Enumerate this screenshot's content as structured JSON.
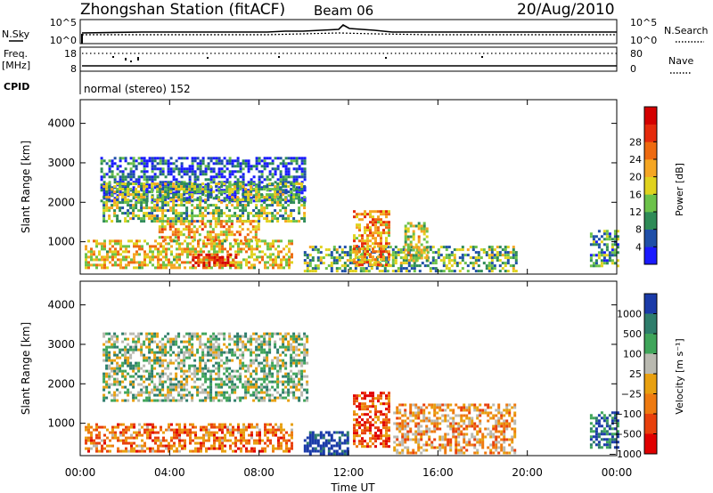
{
  "header": {
    "station": "Zhongshan Station (fitACF)",
    "beam": "Beam 06",
    "date": "20/Aug/2010"
  },
  "panels": {
    "nsky_label": "N.Sky",
    "nsearch_label": "N.Search",
    "freq_label": "Freq.",
    "freq_unit": "[MHz]",
    "nave_label": "Nave",
    "cpid_label": "CPID",
    "cpid_value": "normal (stereo) 152",
    "noise_ticks": [
      "10^5",
      "10^0"
    ],
    "freq_ticks": [
      "18",
      "8"
    ],
    "nave_ticks": [
      "80",
      "0"
    ]
  },
  "axes": {
    "xlabel": "Time UT",
    "ylabel": "Slant Range [km]",
    "xticks": [
      "00:00",
      "04:00",
      "08:00",
      "12:00",
      "16:00",
      "20:00",
      "00:00"
    ],
    "yticks": [
      "1000",
      "2000",
      "3000",
      "4000"
    ]
  },
  "colorbars": {
    "power": {
      "label": "Power [dB]",
      "ticks": [
        "4",
        "8",
        "12",
        "16",
        "20",
        "24",
        "28"
      ],
      "colors": [
        "#1a1aff",
        "#1f4fa8",
        "#2e8b57",
        "#6cc24a",
        "#e0d21e",
        "#f5a623",
        "#ee6a10",
        "#e52a0c",
        "#d40000"
      ]
    },
    "velocity": {
      "label": "Velocity [m s⁻¹]",
      "ticks": [
        "1000",
        "500",
        "100",
        "25",
        "−25",
        "−100",
        "−500",
        "−1000"
      ],
      "colors": [
        "#1a3aa8",
        "#2e7d6b",
        "#3fa55a",
        "#b9b9b0",
        "#e8a010",
        "#ee7a10",
        "#e8400c",
        "#e00000"
      ]
    }
  },
  "chart_data": [
    {
      "type": "heatmap",
      "name": "power",
      "x_range_hours": [
        0,
        24
      ],
      "y_range_km": [
        180,
        4600
      ],
      "regions": [
        {
          "t": [
            0.9,
            10.1
          ],
          "r": [
            2050,
            3150
          ],
          "level": 0.15
        },
        {
          "t": [
            1.0,
            10.0
          ],
          "r": [
            1550,
            2500
          ],
          "level": 0.4
        },
        {
          "t": [
            3.5,
            8.0
          ],
          "r": [
            1050,
            1550
          ],
          "level": 0.6
        },
        {
          "t": [
            0.2,
            9.5
          ],
          "r": [
            350,
            1050
          ],
          "level": 0.55
        },
        {
          "t": [
            5.0,
            7.0
          ],
          "r": [
            400,
            700
          ],
          "level": 0.85
        },
        {
          "t": [
            10.0,
            19.5
          ],
          "r": [
            250,
            900
          ],
          "level": 0.35
        },
        {
          "t": [
            12.2,
            13.8
          ],
          "r": [
            400,
            1800
          ],
          "level": 0.65
        },
        {
          "t": [
            14.5,
            15.5
          ],
          "r": [
            500,
            1500
          ],
          "level": 0.45
        },
        {
          "t": [
            22.8,
            24.0
          ],
          "r": [
            400,
            1300
          ],
          "level": 0.3
        }
      ]
    },
    {
      "type": "heatmap",
      "name": "velocity",
      "x_range_hours": [
        0,
        24
      ],
      "y_range_km": [
        180,
        4600
      ],
      "regions": [
        {
          "t": [
            1.0,
            10.1
          ],
          "r": [
            1550,
            3300
          ],
          "level": 0.375
        },
        {
          "t": [
            0.2,
            9.5
          ],
          "r": [
            300,
            1000
          ],
          "level": 0.7
        },
        {
          "t": [
            10.0,
            12.0
          ],
          "r": [
            250,
            800
          ],
          "level": 0.0
        },
        {
          "t": [
            12.2,
            13.8
          ],
          "r": [
            400,
            1800
          ],
          "level": 0.8
        },
        {
          "t": [
            14.0,
            19.5
          ],
          "r": [
            250,
            1500
          ],
          "level": 0.6
        },
        {
          "t": [
            22.8,
            24.0
          ],
          "r": [
            400,
            1300
          ],
          "level": 0.15
        }
      ]
    }
  ]
}
